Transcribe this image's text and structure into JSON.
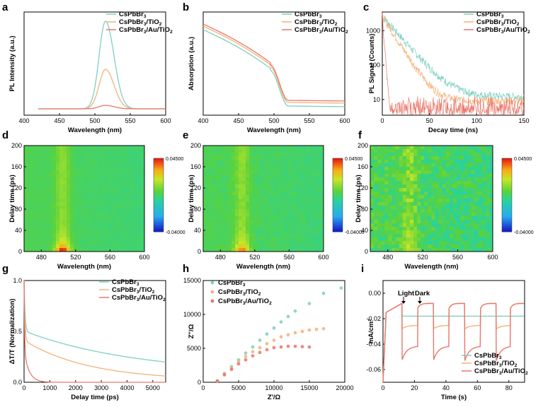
{
  "colors": {
    "cspbbr3": "#7fcfc0",
    "tio2": "#f2b27a",
    "au": "#e8776a"
  },
  "panels": {
    "a": {
      "label": "a",
      "xlabel": "Wavelength (nm)",
      "ylabel": "PL Intensity (a.u.)"
    },
    "b": {
      "label": "b",
      "xlabel": "Wavelength (nm)",
      "ylabel": "Absorption (a.u.)"
    },
    "c": {
      "label": "c",
      "xlabel": "Decay time (ns)",
      "ylabel": "PL Signal (Counts)"
    },
    "d": {
      "label": "d",
      "xlabel": "Wavelength (nm)",
      "ylabel": "Delay time (ps)"
    },
    "e": {
      "label": "e",
      "xlabel": "Wavelength (nm)",
      "ylabel": "Delay time (ps)"
    },
    "f": {
      "label": "f",
      "xlabel": "Wavelength (nm)",
      "ylabel": "Delay time (ps)"
    },
    "g": {
      "label": "g",
      "xlabel": "Delay time (ps)",
      "ylabel": "ΔT/T (Normalization)"
    },
    "h": {
      "label": "h",
      "xlabel": "Z'/Ω",
      "ylabel": "Z''/Ω"
    },
    "i": {
      "label": "i",
      "xlabel": "Time (s)",
      "ylabel": "mA/cm²",
      "light": "Light",
      "dark": "Dark"
    }
  },
  "colorbar": {
    "max": "0.04500",
    "min": "-0.04000"
  },
  "legend": {
    "s1": {
      "main": "CsPbBr",
      "sub": "3",
      "rest": ""
    },
    "s2": {
      "main": "CsPbBr",
      "sub": "3",
      "rest": "/TiO",
      "sub2": "2"
    },
    "s3": {
      "main": "CsPbBr",
      "sub": "3",
      "rest": "/Au/TiO",
      "sub2": "2"
    }
  },
  "chart_data": [
    {
      "panel": "a",
      "type": "line",
      "xlim": [
        400,
        600
      ],
      "xticks": [
        "400",
        "450",
        "500",
        "550",
        "600"
      ],
      "series": [
        {
          "name": "CsPbBr3",
          "peak_x": 515,
          "peak_rel": 1.0
        },
        {
          "name": "CsPbBr3/TiO2",
          "peak_x": 515,
          "peak_rel": 0.45
        },
        {
          "name": "CsPbBr3/Au/TiO2",
          "peak_x": 515,
          "peak_rel": 0.04
        }
      ]
    },
    {
      "panel": "b",
      "type": "line",
      "xlim": [
        400,
        600
      ],
      "xticks": [
        "400",
        "450",
        "500",
        "550",
        "600"
      ],
      "series": [
        {
          "name": "CsPbBr3",
          "edge_x": 510
        },
        {
          "name": "CsPbBr3/TiO2",
          "edge_x": 510
        },
        {
          "name": "CsPbBr3/Au/TiO2",
          "edge_x": 510
        }
      ]
    },
    {
      "panel": "c",
      "type": "scatter",
      "xlim": [
        0,
        150
      ],
      "ylog": true,
      "xticks": [
        "0",
        "50",
        "100",
        "150"
      ],
      "yticks": [
        "10",
        "100",
        "1000"
      ],
      "series": [
        {
          "name": "CsPbBr3",
          "tail_counts": 12
        },
        {
          "name": "CsPbBr3/TiO2",
          "tail_counts": 9
        },
        {
          "name": "CsPbBr3/Au/TiO2",
          "tail_counts": 4
        }
      ]
    },
    {
      "panel": "d",
      "type": "heatmap",
      "xlim": [
        460,
        600
      ],
      "ylim": [
        0,
        200
      ],
      "xticks": [
        "480",
        "520",
        "560",
        "600"
      ],
      "yticks": [
        "0",
        "40",
        "80",
        "120",
        "160",
        "200"
      ]
    },
    {
      "panel": "e",
      "type": "heatmap",
      "xlim": [
        460,
        600
      ],
      "ylim": [
        0,
        200
      ],
      "xticks": [
        "480",
        "520",
        "560",
        "600"
      ],
      "yticks": [
        "0",
        "40",
        "80",
        "120",
        "160",
        "200"
      ]
    },
    {
      "panel": "f",
      "type": "heatmap",
      "xlim": [
        460,
        600
      ],
      "ylim": [
        0,
        200
      ],
      "xticks": [
        "480",
        "520",
        "560",
        "600"
      ],
      "yticks": [
        "0",
        "40",
        "80",
        "120",
        "160",
        "200"
      ]
    },
    {
      "panel": "g",
      "type": "line",
      "xlim": [
        0,
        5500
      ],
      "ylim": [
        0,
        1.0
      ],
      "xticks": [
        "0",
        "1000",
        "2000",
        "3000",
        "4000",
        "5000"
      ],
      "yticks": [
        "0.0",
        "0.5",
        "1.0"
      ],
      "series": [
        {
          "name": "CsPbBr3",
          "end_value": 0.09
        },
        {
          "name": "CsPbBr3/TiO2",
          "end_value": 0.03
        },
        {
          "name": "CsPbBr3/Au/TiO2",
          "end_value": 0.0
        }
      ]
    },
    {
      "panel": "h",
      "type": "scatter",
      "xlim": [
        0,
        20000
      ],
      "ylim": [
        0,
        15000
      ],
      "xticks": [
        "0",
        "5000",
        "10000",
        "15000",
        "20000"
      ],
      "yticks": [
        "0",
        "5000",
        "10000",
        "15000"
      ],
      "series": [
        {
          "name": "CsPbBr3",
          "x": [
            2000,
            3000,
            4000,
            5000,
            6000,
            7000,
            8000,
            9000,
            10000,
            11000,
            12000,
            13000,
            15000,
            17000,
            19500
          ],
          "y": [
            200,
            1300,
            2300,
            3300,
            4300,
            5200,
            6200,
            7100,
            8000,
            8900,
            9700,
            10500,
            11600,
            13100,
            13900
          ]
        },
        {
          "name": "CsPbBr3/TiO2",
          "x": [
            2000,
            3000,
            4000,
            5000,
            6000,
            7000,
            8000,
            9000,
            10000,
            11000,
            12000,
            13000,
            14000,
            15000,
            16000,
            17000
          ],
          "y": [
            200,
            1200,
            2100,
            3000,
            3800,
            4500,
            5100,
            5700,
            6200,
            6700,
            7000,
            7300,
            7500,
            7700,
            7800,
            7900
          ]
        },
        {
          "name": "CsPbBr3/Au/TiO2",
          "x": [
            2000,
            3000,
            4000,
            5000,
            6000,
            7000,
            8000,
            9000,
            10000,
            11000,
            12000,
            13000,
            14000,
            15000
          ],
          "y": [
            200,
            1100,
            1900,
            2700,
            3300,
            3900,
            4400,
            4800,
            5100,
            5200,
            5300,
            5300,
            5250,
            5200
          ]
        }
      ]
    },
    {
      "panel": "i",
      "type": "line",
      "xlim": [
        0,
        90
      ],
      "ylim": [
        -0.07,
        0.01
      ],
      "xticks": [
        "0",
        "20",
        "40",
        "60",
        "80"
      ],
      "yticks": [
        "0.00",
        "-0.02",
        "-0.04",
        "-0.06"
      ],
      "series": [
        {
          "name": "CsPbBr3",
          "light_value": -0.018
        },
        {
          "name": "CsPbBr3/TiO2",
          "light_value": -0.028
        },
        {
          "name": "CsPbBr3/Au/TiO2",
          "light_value": -0.053
        }
      ]
    }
  ]
}
